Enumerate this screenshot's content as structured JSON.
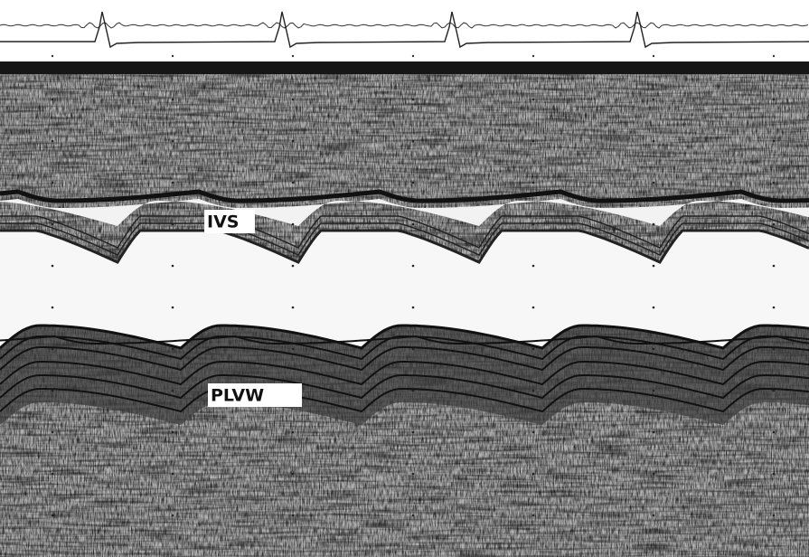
{
  "labels": {
    "ivs": "IVS",
    "plvw": "PLVW"
  }
}
